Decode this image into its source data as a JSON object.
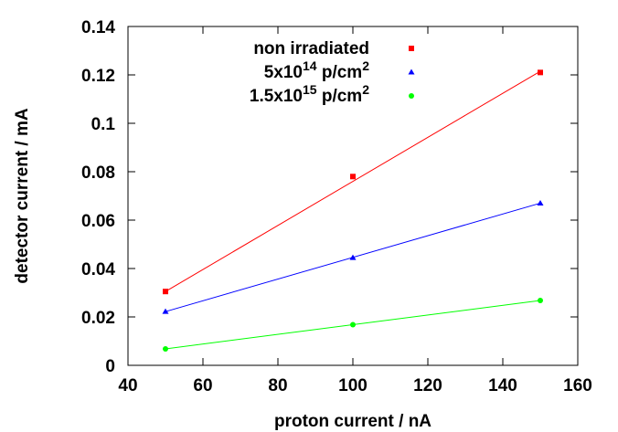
{
  "chart_data": {
    "type": "line",
    "xlabel": "proton current / nA",
    "ylabel": "detector current / mA",
    "xlim": [
      40,
      160
    ],
    "ylim": [
      0,
      0.14
    ],
    "xticks": [
      "40",
      "60",
      "80",
      "100",
      "120",
      "140",
      "160"
    ],
    "yticks": [
      "0",
      "0.02",
      "0.04",
      "0.06",
      "0.08",
      "0.1",
      "0.12",
      "0.14"
    ],
    "grid": false,
    "legend_position": "top",
    "series": [
      {
        "name": "non irradiated",
        "name_parts": {
          "base": "non irradiated",
          "exp": "",
          "suffix": ""
        },
        "color": "#ff0000",
        "marker": "square",
        "x": [
          50,
          100,
          150
        ],
        "y": [
          0.0305,
          0.078,
          0.121
        ],
        "fit": {
          "x": [
            50,
            150
          ],
          "y": [
            0.0305,
            0.1215
          ]
        }
      },
      {
        "name": "5x10^14 p/cm^2",
        "name_parts": {
          "base": "5x10",
          "exp": "14",
          "suffix": " p/cm",
          "suffix_exp": "2"
        },
        "color": "#0000ff",
        "marker": "triangle",
        "x": [
          50,
          100,
          150
        ],
        "y": [
          0.0222,
          0.0445,
          0.067
        ],
        "fit": {
          "x": [
            50,
            150
          ],
          "y": [
            0.0222,
            0.067
          ]
        }
      },
      {
        "name": "1.5x10^15 p/cm^2",
        "name_parts": {
          "base": "1.5x10",
          "exp": "15",
          "suffix": " p/cm",
          "suffix_exp": "2"
        },
        "color": "#00ff00",
        "marker": "circle",
        "x": [
          50,
          100,
          150
        ],
        "y": [
          0.0068,
          0.0168,
          0.0268
        ],
        "fit": {
          "x": [
            50,
            150
          ],
          "y": [
            0.0068,
            0.0268
          ]
        }
      }
    ]
  }
}
